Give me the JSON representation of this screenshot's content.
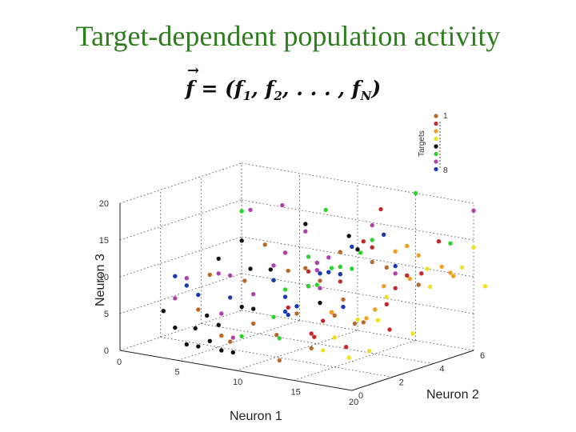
{
  "slide": {
    "title": "Target-dependent population activity",
    "formula": {
      "lhs": "f",
      "eq": " = (",
      "f1": "f",
      "sub1": "1",
      "sep1": ", ",
      "f2": "f",
      "sub2": "2",
      "dots": ", . . . , ",
      "fN": "f",
      "subN": "N",
      "close": ")"
    }
  },
  "chart_data": {
    "type": "scatter",
    "projection": "3d",
    "title": "",
    "xlabel": "Neuron 1",
    "ylabel": "Neuron 2",
    "zlabel": "Neuron 3",
    "xlim": [
      0,
      20
    ],
    "ylim": [
      0,
      6
    ],
    "zlim": [
      0,
      20
    ],
    "x_ticks": [
      "0",
      "5",
      "10",
      "15",
      "20"
    ],
    "y_ticks": [
      "0",
      "2",
      "4",
      "6"
    ],
    "z_ticks": [
      "0",
      "5",
      "10",
      "15",
      "20"
    ],
    "grid": true,
    "legend": {
      "title": "Targets",
      "placement": "top-right",
      "labels": [
        "1",
        "8"
      ]
    },
    "series": [
      {
        "target": 1,
        "color": "#b8692a",
        "points": [
          [
            5,
            1,
            6
          ],
          [
            9,
            2,
            15
          ],
          [
            11,
            3,
            9
          ],
          [
            12,
            4,
            13
          ],
          [
            8,
            2,
            4
          ],
          [
            14,
            3,
            8
          ],
          [
            13,
            2,
            2
          ],
          [
            6,
            1,
            11
          ],
          [
            10,
            3,
            5
          ],
          [
            16,
            4,
            12
          ],
          [
            7,
            1,
            3
          ],
          [
            12,
            1,
            1
          ],
          [
            15,
            2,
            7
          ],
          [
            9,
            4,
            10
          ],
          [
            11,
            2,
            12
          ],
          [
            13,
            5,
            11
          ],
          [
            8,
            3,
            9
          ],
          [
            6,
            2,
            1
          ],
          [
            14,
            4,
            4
          ],
          [
            10,
            2,
            3
          ],
          [
            12,
            3,
            10
          ],
          [
            17,
            5,
            9
          ],
          [
            9,
            1,
            11
          ],
          [
            15,
            3,
            5
          ]
        ]
      },
      {
        "target": 2,
        "color": "#c42a2a",
        "points": [
          [
            12,
            6,
            17
          ],
          [
            14,
            4,
            15
          ],
          [
            16,
            5,
            10
          ],
          [
            10,
            4,
            11
          ],
          [
            13,
            3,
            6
          ],
          [
            15,
            1,
            5
          ],
          [
            18,
            3,
            5
          ],
          [
            11,
            2,
            7
          ],
          [
            16,
            4,
            7
          ],
          [
            13,
            5,
            13
          ],
          [
            9,
            3,
            13
          ],
          [
            14,
            2,
            6
          ],
          [
            17,
            6,
            14
          ],
          [
            12,
            4,
            9
          ],
          [
            11,
            3,
            11
          ],
          [
            19,
            4,
            12
          ],
          [
            15,
            5,
            8
          ],
          [
            13,
            2,
            4
          ],
          [
            16,
            2,
            3
          ]
        ]
      },
      {
        "target": 3,
        "color": "#f0a020",
        "points": [
          [
            16,
            5,
            14
          ],
          [
            18,
            4,
            11
          ],
          [
            14,
            5,
            8
          ],
          [
            15,
            4,
            6
          ],
          [
            17,
            5,
            13
          ],
          [
            19,
            5,
            12
          ],
          [
            13,
            3,
            6
          ],
          [
            18,
            6,
            10
          ],
          [
            16,
            3,
            6
          ],
          [
            20,
            5,
            11
          ],
          [
            15,
            5,
            13
          ]
        ]
      },
      {
        "target": 4,
        "color": "#f0e020",
        "points": [
          [
            16,
            6,
            10
          ],
          [
            18,
            5,
            9
          ],
          [
            17,
            3,
            6
          ],
          [
            20,
            6,
            14
          ],
          [
            19,
            6,
            11
          ],
          [
            16,
            4,
            8
          ],
          [
            18,
            2,
            3
          ],
          [
            21,
            6,
            9
          ],
          [
            14,
            2,
            2
          ],
          [
            18,
            1,
            3
          ],
          [
            17,
            2,
            7
          ],
          [
            20,
            3,
            5
          ],
          [
            15,
            2,
            4
          ]
        ]
      },
      {
        "target": 5,
        "color": "#111111",
        "points": [
          [
            2,
            1,
            5
          ],
          [
            3,
            1,
            3
          ],
          [
            4,
            2,
            4
          ],
          [
            5,
            2,
            3
          ],
          [
            4,
            1,
            1
          ],
          [
            3,
            2,
            2
          ],
          [
            7,
            2,
            15
          ],
          [
            5,
            2,
            12
          ],
          [
            6,
            3,
            10
          ],
          [
            7,
            2,
            6
          ],
          [
            8,
            2,
            6
          ],
          [
            6,
            1,
            2
          ],
          [
            7,
            1,
            1
          ],
          [
            9,
            4,
            16
          ],
          [
            11,
            5,
            14
          ],
          [
            6,
            4,
            9
          ],
          [
            10,
            6,
            11
          ],
          [
            5,
            1,
            1
          ],
          [
            8,
            1,
            1
          ],
          [
            12,
            3,
            7
          ]
        ]
      },
      {
        "target": 6,
        "color": "#2ad42a",
        "points": [
          [
            7,
            2,
            19
          ],
          [
            10,
            4,
            11
          ],
          [
            11,
            3,
            13
          ],
          [
            12,
            3,
            11
          ],
          [
            13,
            5,
            14
          ],
          [
            9,
            3,
            8
          ],
          [
            11,
            3,
            9
          ],
          [
            13,
            3,
            12
          ],
          [
            15,
            6,
            20
          ],
          [
            8,
            3,
            9
          ],
          [
            12,
            4,
            11
          ],
          [
            10,
            4,
            8
          ],
          [
            8,
            3,
            4
          ],
          [
            10,
            3,
            6
          ],
          [
            7,
            2,
            2
          ],
          [
            18,
            6,
            14
          ],
          [
            12,
            5,
            12
          ],
          [
            9,
            5,
            17
          ],
          [
            13,
            4,
            11
          ],
          [
            12,
            1,
            4
          ]
        ]
      },
      {
        "target": 7,
        "color": "#b040b0",
        "points": [
          [
            4,
            1,
            10
          ],
          [
            5,
            2,
            10
          ],
          [
            6,
            3,
            18
          ],
          [
            7,
            4,
            18
          ],
          [
            9,
            4,
            15
          ],
          [
            11,
            4,
            12
          ],
          [
            12,
            4,
            10
          ],
          [
            8,
            3,
            11
          ],
          [
            10,
            4,
            10
          ],
          [
            6,
            2,
            10
          ],
          [
            8,
            2,
            8
          ],
          [
            7,
            1,
            6
          ],
          [
            3,
            1,
            7
          ],
          [
            9,
            3,
            13
          ],
          [
            13,
            5,
            16
          ],
          [
            20,
            6,
            19
          ],
          [
            8,
            1,
            3
          ],
          [
            10,
            4,
            11
          ],
          [
            12,
            3,
            9
          ],
          [
            15,
            5,
            10
          ]
        ]
      },
      {
        "target": 8,
        "color": "#1a3ab0",
        "points": [
          [
            3,
            1,
            10
          ],
          [
            4,
            1,
            9
          ],
          [
            5,
            1,
            8
          ],
          [
            8,
            3,
            9
          ],
          [
            9,
            3,
            7
          ],
          [
            10,
            3,
            6
          ],
          [
            11,
            2,
            6
          ],
          [
            12,
            4,
            10
          ],
          [
            14,
            5,
            15
          ],
          [
            15,
            5,
            11
          ],
          [
            13,
            4,
            14
          ],
          [
            12,
            3,
            11
          ],
          [
            6,
            2,
            7
          ],
          [
            9,
            3,
            5
          ],
          [
            11,
            4,
            10
          ],
          [
            14,
            3,
            7
          ]
        ]
      }
    ]
  }
}
